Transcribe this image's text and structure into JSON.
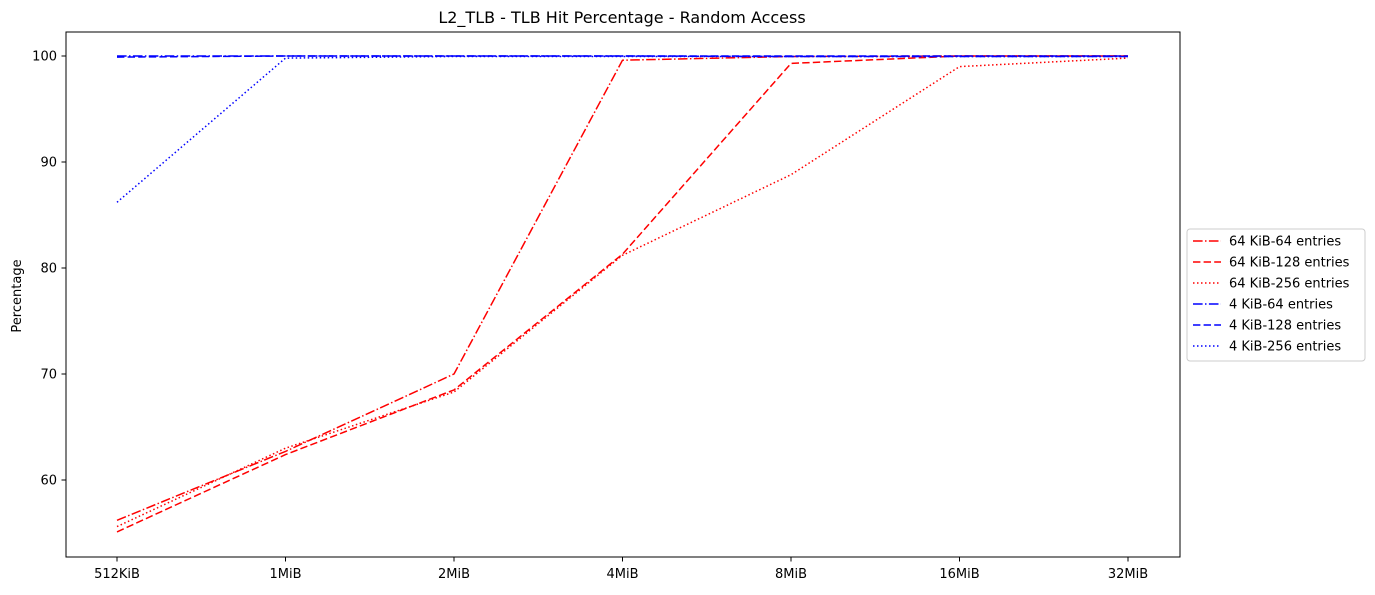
{
  "chart_data": {
    "type": "line",
    "title": "L2_TLB - TLB Hit Percentage - Random Access",
    "xlabel": "",
    "ylabel": "Percentage",
    "categories": [
      "512KiB",
      "1MiB",
      "2MiB",
      "4MiB",
      "8MiB",
      "16MiB",
      "32MiB"
    ],
    "yticks": [
      "60",
      "70",
      "80",
      "90",
      "100"
    ],
    "ylim": [
      53.8,
      102.3
    ],
    "grid": false,
    "legend_position": "center-right outside",
    "series": [
      {
        "name": "64 KiB-64 entries",
        "color": "#ff0000",
        "dash": "dashdot",
        "values": [
          56.2,
          62.7,
          70.0,
          99.6,
          99.95,
          100.0,
          100.0
        ]
      },
      {
        "name": "64 KiB-128 entries",
        "color": "#ff0000",
        "dash": "dashed",
        "values": [
          55.1,
          62.4,
          68.5,
          81.3,
          99.3,
          100.0,
          100.0
        ]
      },
      {
        "name": "64 KiB-256 entries",
        "color": "#ff0000",
        "dash": "dotted",
        "values": [
          55.6,
          63.0,
          68.3,
          81.2,
          88.8,
          99.0,
          99.8
        ]
      },
      {
        "name": "4 KiB-64 entries",
        "color": "#0000ff",
        "dash": "dashdot",
        "values": [
          100.0,
          100.0,
          100.0,
          100.0,
          99.95,
          99.95,
          99.95
        ]
      },
      {
        "name": "4 KiB-128 entries",
        "color": "#0000ff",
        "dash": "dashed",
        "values": [
          99.9,
          100.0,
          100.0,
          100.0,
          100.0,
          100.0,
          100.0
        ]
      },
      {
        "name": "4 KiB-256 entries",
        "color": "#0000ff",
        "dash": "dotted",
        "values": [
          86.2,
          99.8,
          99.95,
          99.95,
          99.95,
          99.95,
          99.95
        ]
      }
    ]
  }
}
